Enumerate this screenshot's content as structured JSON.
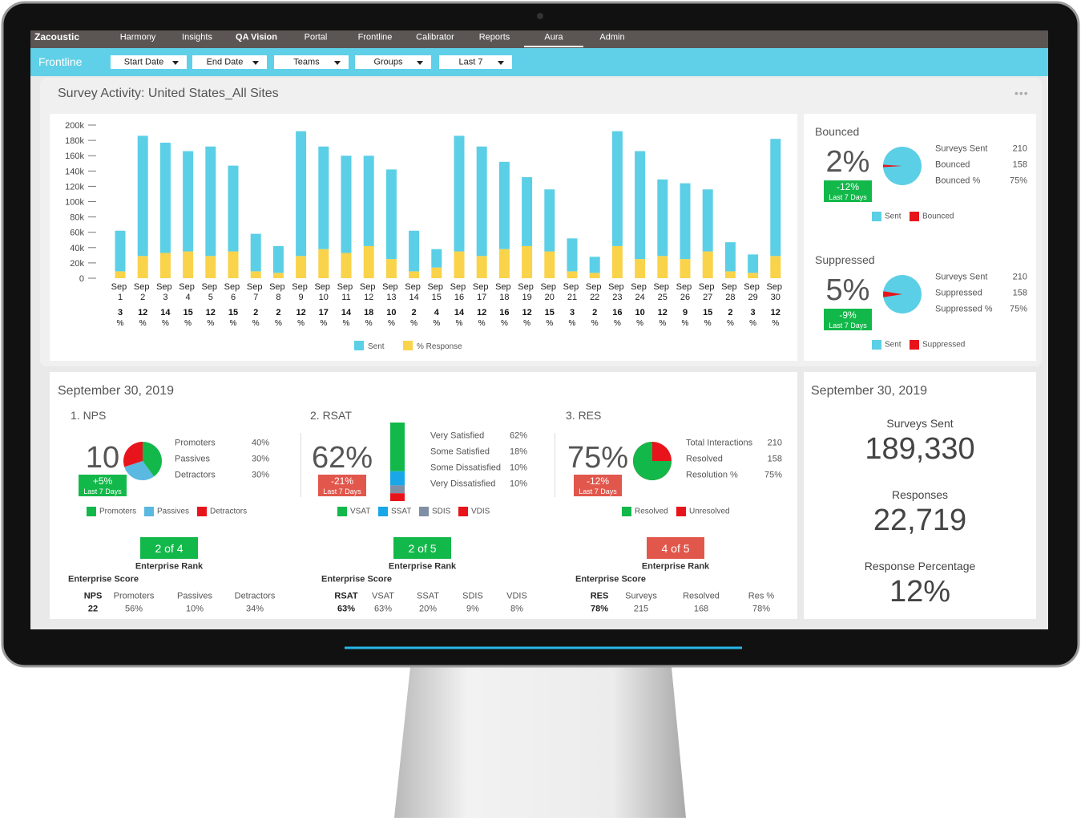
{
  "nav": {
    "brand": "Zacoustic",
    "items": [
      "Harmony",
      "Insights",
      "QA Vision",
      "Portal",
      "Frontline",
      "Calibrator",
      "Reports",
      "Aura",
      "Admin"
    ]
  },
  "filters": {
    "title": "Frontline",
    "items": [
      "Start Date",
      "End Date",
      "Teams",
      "Groups",
      "Last 7"
    ]
  },
  "panel": {
    "title": "Survey Activity: United States_All Sites"
  },
  "chart_data": {
    "type": "bar",
    "stacked": true,
    "categories": [
      "Sep 1",
      "Sep 2",
      "Sep 3",
      "Sep 4",
      "Sep 5",
      "Sep 6",
      "Sep 7",
      "Sep 8",
      "Sep 9",
      "Sep 10",
      "Sep 11",
      "Sep 12",
      "Sep 13",
      "Sep 14",
      "Sep 15",
      "Sep 16",
      "Sep 17",
      "Sep 18",
      "Sep 19",
      "Sep 20",
      "Sep 21",
      "Sep 22",
      "Sep 23",
      "Sep 24",
      "Sep 25",
      "Sep 26",
      "Sep 27",
      "Sep 28",
      "Sep 29",
      "Sep 30"
    ],
    "series": [
      {
        "name": "% Response",
        "color": "#f9d34a",
        "values": [
          9000,
          29000,
          33000,
          35000,
          29000,
          35000,
          9000,
          7000,
          29000,
          38000,
          33000,
          42000,
          25000,
          9000,
          14000,
          35000,
          29000,
          38000,
          42000,
          35000,
          9000,
          7000,
          42000,
          25000,
          29000,
          25000,
          35000,
          9000,
          7000,
          29000
        ]
      },
      {
        "name": "Sent",
        "color": "#5bcfe6",
        "values": [
          53000,
          157000,
          144000,
          131000,
          143000,
          112000,
          49000,
          35000,
          163000,
          134000,
          127000,
          118000,
          117000,
          53000,
          24000,
          151000,
          143000,
          114000,
          90000,
          81000,
          43000,
          21000,
          150000,
          141000,
          100000,
          99000,
          81000,
          38000,
          24000,
          153000
        ]
      }
    ],
    "legend_order": [
      "Sent",
      "% Response"
    ],
    "response_pct": [
      3,
      12,
      14,
      15,
      12,
      15,
      2,
      2,
      12,
      17,
      14,
      18,
      10,
      2,
      4,
      14,
      12,
      16,
      12,
      15,
      3,
      2,
      16,
      10,
      12,
      9,
      15,
      2,
      3,
      12
    ],
    "response_unit": "%",
    "ylim": [
      0,
      200000
    ],
    "yticks": [
      0,
      {
        "value": 20000,
        "label": "20k"
      },
      {
        "value": 40000,
        "label": "40k"
      },
      {
        "value": 60000,
        "label": "60k"
      },
      {
        "value": 80000,
        "label": "80k"
      },
      {
        "value": 100000,
        "label": "100k"
      },
      {
        "value": 120000,
        "label": "120k"
      },
      {
        "value": 140000,
        "label": "140k"
      },
      {
        "value": 160000,
        "label": "160k"
      },
      {
        "value": 180000,
        "label": "180k"
      },
      {
        "value": 200000,
        "label": "200k"
      }
    ]
  },
  "bounced": {
    "title": "Bounced",
    "value": 2,
    "value_label": "2%",
    "change": "-12%",
    "period": "Last 7 Days",
    "badge_color": "#13b84a",
    "stats": [
      {
        "label": "Surveys Sent",
        "value": "210"
      },
      {
        "label": "Bounced",
        "value": "158"
      },
      {
        "label": "Bounced %",
        "value": "75%"
      }
    ],
    "legend": [
      {
        "name": "Sent",
        "color": "#5bcfe6"
      },
      {
        "name": "Bounced",
        "color": "#e8141b"
      }
    ]
  },
  "suppressed": {
    "title": "Suppressed",
    "value": 5,
    "value_label": "5%",
    "change": "-9%",
    "period": "Last 7 Days",
    "badge_color": "#13b84a",
    "stats": [
      {
        "label": "Surveys Sent",
        "value": "210"
      },
      {
        "label": "Suppressed",
        "value": "158"
      },
      {
        "label": "Suppressed %",
        "value": "75%"
      }
    ],
    "legend": [
      {
        "name": "Sent",
        "color": "#5bcfe6"
      },
      {
        "name": "Suppressed",
        "color": "#e8141b"
      }
    ]
  },
  "scores": {
    "date": "September 30, 2019",
    "nps": {
      "title": "1. NPS",
      "score": "10",
      "change": "+5%",
      "period": "Last 7 Days",
      "badge_color": "#13b84a",
      "breakdown": [
        {
          "name": "Promoters",
          "value": 40,
          "label": "40%",
          "color": "#13b84a"
        },
        {
          "name": "Passives",
          "value": 30,
          "label": "30%",
          "color": "#5bb8e0"
        },
        {
          "name": "Detractors",
          "value": 30,
          "label": "30%",
          "color": "#e8141b"
        }
      ],
      "rank": "2 of 4",
      "rank_color": "#13b84a",
      "rank_label": "Enterprise Rank",
      "score_label": "Enterprise Score",
      "table": {
        "header": [
          "NPS",
          "Promoters",
          "Passives",
          "Detractors"
        ],
        "row": [
          "22",
          "56%",
          "10%",
          "34%"
        ]
      }
    },
    "rsat": {
      "title": "2. RSAT",
      "score": "62%",
      "change": "-21%",
      "period": "Last 7 Days",
      "badge_color": "#e2574c",
      "breakdown": [
        {
          "name": "Very Satisfied",
          "code": "VSAT",
          "value": 62,
          "label": "62%",
          "color": "#13b84a"
        },
        {
          "name": "Some Satisfied",
          "code": "SSAT",
          "value": 18,
          "label": "18%",
          "color": "#1aa7e8"
        },
        {
          "name": "Some Dissatisfied",
          "code": "SDIS",
          "value": 10,
          "label": "10%",
          "color": "#7f8fa6"
        },
        {
          "name": "Very Dissatisfied",
          "code": "VDIS",
          "value": 10,
          "label": "10%",
          "color": "#e8141b"
        }
      ],
      "rank": "2 of 5",
      "rank_color": "#13b84a",
      "rank_label": "Enterprise Rank",
      "score_label": "Enterprise Score",
      "table": {
        "header": [
          "RSAT",
          "VSAT",
          "SSAT",
          "SDIS",
          "VDIS"
        ],
        "row": [
          "63%",
          "63%",
          "20%",
          "9%",
          "8%"
        ]
      }
    },
    "res": {
      "title": "3. RES",
      "score": "75%",
      "change": "-12%",
      "period": "Last 7 Days",
      "badge_color": "#e2574c",
      "stats": [
        {
          "label": "Total Interactions",
          "value": "210"
        },
        {
          "label": "Resolved",
          "value": "158"
        },
        {
          "label": "Resolution %",
          "value": 75,
          "value_label": "75%"
        }
      ],
      "legend": [
        {
          "name": "Resolved",
          "color": "#13b84a"
        },
        {
          "name": "Unresolved",
          "color": "#e8141b"
        }
      ],
      "rank": "4 of 5",
      "rank_color": "#e2574c",
      "rank_label": "Enterprise Rank",
      "score_label": "Enterprise Score",
      "table": {
        "header": [
          "RES",
          "Surveys",
          "Resolved",
          "Res %"
        ],
        "row": [
          "78%",
          "215",
          "168",
          "78%"
        ]
      }
    }
  },
  "totals": {
    "date": "September 30, 2019",
    "items": [
      {
        "label": "Surveys Sent",
        "value": "189,330"
      },
      {
        "label": "Responses",
        "value": "22,719"
      },
      {
        "label": "Response Percentage",
        "value": "12%"
      }
    ]
  }
}
